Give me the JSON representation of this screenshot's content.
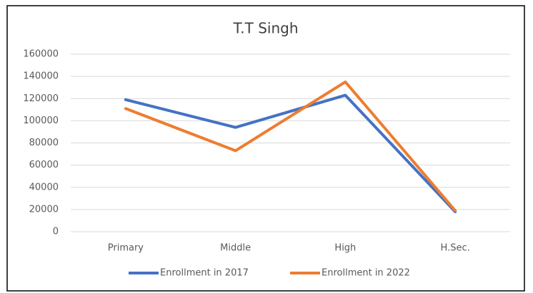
{
  "chart_data": {
    "type": "line",
    "title": "T.T Singh",
    "categories": [
      "Primary",
      "Middle",
      "High",
      "H.Sec."
    ],
    "series": [
      {
        "name": "Enrollment in 2017",
        "color": "#4472c4",
        "values": [
          119000,
          94000,
          123000,
          18000
        ]
      },
      {
        "name": "Enrollment in 2022",
        "color": "#ed7d31",
        "values": [
          111000,
          73000,
          135000,
          19000
        ]
      }
    ],
    "ylim": [
      0,
      160000
    ],
    "yticks": [
      0,
      20000,
      40000,
      60000,
      80000,
      100000,
      120000,
      140000,
      160000
    ],
    "grid": true,
    "legend": "bottom"
  }
}
